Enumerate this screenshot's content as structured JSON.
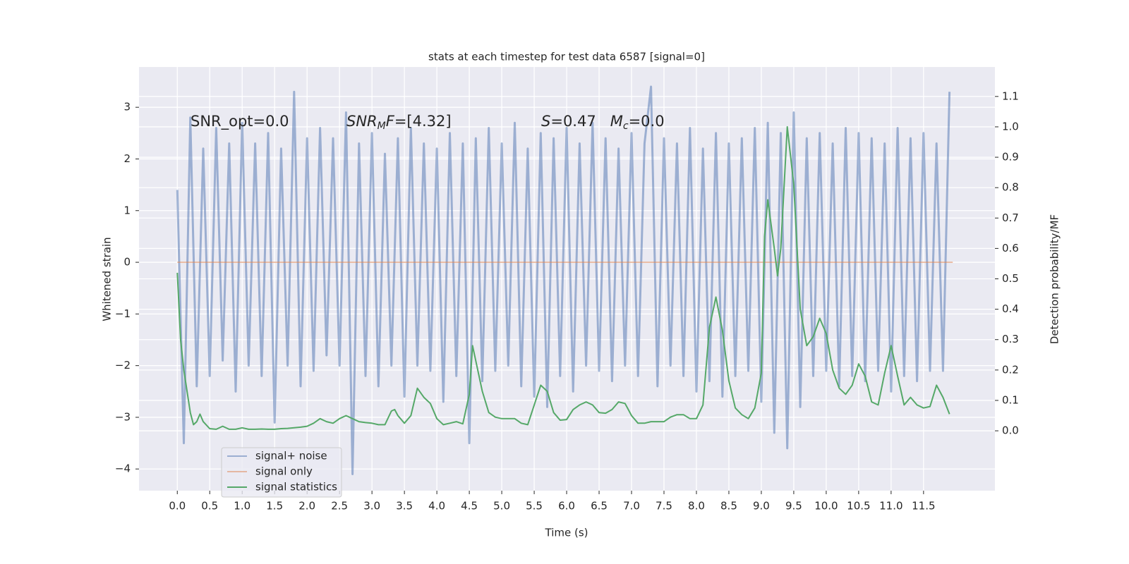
{
  "chart_data": {
    "type": "line",
    "title": "stats at each timestep for test data 6587 [signal=0]",
    "x_label": "Time (s)",
    "y_label": "Whitened strain",
    "y2_label": "Detection probability/MF",
    "xlim": [
      -0.59,
      12.6
    ],
    "ylim": [
      -4.42,
      3.78
    ],
    "y2lim": [
      -0.197,
      1.197
    ],
    "grid": true,
    "legend": "lower left",
    "xticks": [
      {
        "value": 0,
        "label": "0.0"
      },
      0.5,
      {
        "value": 1,
        "label": "1.0"
      },
      1.5,
      {
        "value": 2,
        "label": "2.0"
      },
      2.5,
      {
        "value": 3,
        "label": "3.0"
      },
      3.5,
      {
        "value": 4,
        "label": "4.0"
      },
      4.5,
      {
        "value": 5,
        "label": "5.0"
      },
      5.5,
      {
        "value": 6,
        "label": "6.0"
      },
      6.5,
      {
        "value": 7,
        "label": "7.0"
      },
      7.5,
      {
        "value": 8,
        "label": "8.0"
      },
      8.5,
      {
        "value": 9,
        "label": "9.0"
      },
      9.5,
      {
        "value": 10,
        "label": "10.0"
      },
      10.5,
      {
        "value": 11,
        "label": "11.0"
      },
      11.5
    ],
    "yticks": [
      {
        "value": -4,
        "label": "−4"
      },
      {
        "value": -3,
        "label": "−3"
      },
      {
        "value": -2,
        "label": "−2"
      },
      {
        "value": -1,
        "label": "−1"
      },
      0,
      1,
      2,
      3
    ],
    "y2ticks": [
      {
        "value": 0,
        "label": "0.0"
      },
      0.1,
      0.2,
      0.3,
      0.4,
      0.5,
      0.6,
      0.7,
      0.8,
      0.9,
      {
        "value": 1,
        "label": "1.0"
      },
      1.1
    ],
    "annotations": [
      {
        "parts": [
          {
            "text": "SNR_opt=0.0"
          }
        ]
      },
      {
        "parts": [
          {
            "text": "SNR",
            "italic": true
          },
          {
            "text": "M",
            "italic": true,
            "sub": true
          },
          {
            "text": "F",
            "italic": true
          },
          {
            "text": "=[4.32]"
          }
        ]
      },
      {
        "parts": [
          {
            "text": "S",
            "italic": true
          },
          {
            "text": "=0.47   "
          },
          {
            "text": "M",
            "italic": true
          },
          {
            "text": "c",
            "italic": true,
            "sub": true
          },
          {
            "text": "=0.0"
          }
        ]
      }
    ],
    "series": [
      {
        "name": "signal+ noise",
        "color": "#4c72b0",
        "alpha": 0.5,
        "x": [
          0.0,
          0.1,
          0.2,
          0.3,
          0.4,
          0.5,
          0.6,
          0.7,
          0.8,
          0.9,
          1.0,
          1.1,
          1.2,
          1.3,
          1.4,
          1.5,
          1.6,
          1.7,
          1.8,
          1.9,
          2.0,
          2.1,
          2.2,
          2.3,
          2.4,
          2.5,
          2.6,
          2.7,
          2.8,
          2.9,
          3.0,
          3.1,
          3.2,
          3.3,
          3.4,
          3.5,
          3.6,
          3.7,
          3.8,
          3.9,
          4.0,
          4.1,
          4.2,
          4.3,
          4.4,
          4.5,
          4.6,
          4.7,
          4.8,
          4.9,
          5.0,
          5.1,
          5.2,
          5.3,
          5.4,
          5.5,
          5.6,
          5.7,
          5.8,
          5.9,
          6.0,
          6.1,
          6.2,
          6.3,
          6.4,
          6.5,
          6.6,
          6.7,
          6.8,
          6.9,
          7.0,
          7.1,
          7.2,
          7.3,
          7.4,
          7.5,
          7.6,
          7.7,
          7.8,
          7.9,
          8.0,
          8.1,
          8.2,
          8.3,
          8.4,
          8.5,
          8.6,
          8.7,
          8.8,
          8.9,
          9.0,
          9.1,
          9.2,
          9.3,
          9.4,
          9.5,
          9.6,
          9.7,
          9.8,
          9.9,
          10.0,
          10.1,
          10.2,
          10.3,
          10.4,
          10.5,
          10.6,
          10.7,
          10.8,
          10.9,
          11.0,
          11.1,
          11.2,
          11.3,
          11.4,
          11.5,
          11.6,
          11.7,
          11.8,
          11.9
        ],
        "values": [
          1.4,
          -3.5,
          2.8,
          -2.4,
          2.2,
          -2.2,
          2.6,
          -1.9,
          2.3,
          -2.5,
          2.7,
          -2.0,
          2.3,
          -2.2,
          2.5,
          -3.1,
          2.2,
          -2.0,
          3.3,
          -2.4,
          2.4,
          -2.1,
          2.6,
          -1.8,
          2.4,
          -2.0,
          2.9,
          -4.1,
          2.3,
          -2.2,
          2.5,
          -2.4,
          2.1,
          -2.0,
          2.4,
          -2.6,
          2.6,
          -2.0,
          2.3,
          -2.1,
          2.2,
          -2.7,
          2.5,
          -2.2,
          2.3,
          -3.5,
          2.4,
          -2.3,
          2.6,
          -2.1,
          2.3,
          -2.0,
          2.7,
          -2.4,
          2.2,
          -2.6,
          2.5,
          -2.8,
          2.4,
          -2.2,
          2.6,
          -2.5,
          2.3,
          -2.0,
          2.7,
          -2.1,
          2.4,
          -2.3,
          2.2,
          -2.0,
          2.5,
          -2.2,
          2.3,
          3.4,
          -2.4,
          2.4,
          -2.0,
          2.3,
          -2.2,
          2.6,
          -2.5,
          2.2,
          -2.3,
          2.5,
          -2.6,
          2.3,
          -2.2,
          2.4,
          -2.1,
          2.6,
          -2.7,
          2.7,
          -3.3,
          2.5,
          -3.6,
          2.9,
          -2.8,
          2.4,
          -2.2,
          2.5,
          -2.1,
          2.3,
          -2.4,
          2.6,
          -2.2,
          2.5,
          -2.3,
          2.4,
          -2.1,
          2.3,
          -2.5,
          2.6,
          -2.2,
          2.4,
          -2.3,
          2.5,
          -2.1,
          2.3,
          -2.1,
          3.3
        ]
      },
      {
        "name": "signal only",
        "color": "#dd8452",
        "alpha": 0.5,
        "x": [
          0.0,
          11.95
        ],
        "values": [
          0,
          0
        ]
      },
      {
        "name": "signal statistics",
        "color": "#55a868",
        "alpha": 1,
        "axis": "y2",
        "x": [
          0.0,
          0.05,
          0.1,
          0.2,
          0.25,
          0.3,
          0.35,
          0.4,
          0.5,
          0.6,
          0.7,
          0.8,
          0.9,
          1.0,
          1.1,
          1.2,
          1.3,
          1.4,
          1.5,
          1.6,
          1.7,
          1.8,
          1.9,
          2.0,
          2.1,
          2.2,
          2.3,
          2.4,
          2.5,
          2.6,
          2.7,
          2.8,
          2.9,
          3.0,
          3.1,
          3.2,
          3.3,
          3.35,
          3.4,
          3.5,
          3.6,
          3.7,
          3.8,
          3.9,
          4.0,
          4.1,
          4.2,
          4.3,
          4.4,
          4.5,
          4.55,
          4.6,
          4.7,
          4.8,
          4.9,
          5.0,
          5.1,
          5.2,
          5.3,
          5.4,
          5.5,
          5.6,
          5.7,
          5.8,
          5.9,
          6.0,
          6.1,
          6.2,
          6.3,
          6.4,
          6.5,
          6.6,
          6.7,
          6.8,
          6.9,
          7.0,
          7.1,
          7.2,
          7.3,
          7.4,
          7.5,
          7.6,
          7.7,
          7.8,
          7.9,
          8.0,
          8.1,
          8.2,
          8.3,
          8.4,
          8.5,
          8.6,
          8.7,
          8.8,
          8.9,
          9.0,
          9.05,
          9.1,
          9.2,
          9.25,
          9.3,
          9.4,
          9.5,
          9.6,
          9.7,
          9.8,
          9.9,
          10.0,
          10.1,
          10.2,
          10.3,
          10.4,
          10.5,
          10.6,
          10.7,
          10.8,
          10.9,
          11.0,
          11.1,
          11.2,
          11.3,
          11.4,
          11.5,
          11.6,
          11.7,
          11.8,
          11.9
        ],
        "values": [
          0.52,
          0.3,
          0.2,
          0.06,
          0.02,
          0.03,
          0.055,
          0.03,
          0.007,
          0.005,
          0.015,
          0.005,
          0.005,
          0.01,
          0.005,
          0.005,
          0.006,
          0.005,
          0.005,
          0.007,
          0.008,
          0.01,
          0.012,
          0.015,
          0.025,
          0.04,
          0.03,
          0.025,
          0.04,
          0.05,
          0.04,
          0.03,
          0.027,
          0.025,
          0.02,
          0.02,
          0.065,
          0.07,
          0.05,
          0.025,
          0.05,
          0.14,
          0.11,
          0.09,
          0.04,
          0.02,
          0.025,
          0.03,
          0.023,
          0.12,
          0.28,
          0.23,
          0.13,
          0.06,
          0.045,
          0.04,
          0.04,
          0.04,
          0.025,
          0.02,
          0.085,
          0.15,
          0.13,
          0.06,
          0.035,
          0.037,
          0.07,
          0.085,
          0.095,
          0.085,
          0.06,
          0.058,
          0.07,
          0.095,
          0.09,
          0.05,
          0.025,
          0.025,
          0.03,
          0.03,
          0.03,
          0.045,
          0.053,
          0.053,
          0.04,
          0.04,
          0.085,
          0.34,
          0.44,
          0.33,
          0.165,
          0.075,
          0.053,
          0.04,
          0.075,
          0.19,
          0.64,
          0.76,
          0.6,
          0.51,
          0.6,
          1.0,
          0.81,
          0.4,
          0.28,
          0.31,
          0.37,
          0.32,
          0.2,
          0.14,
          0.12,
          0.15,
          0.22,
          0.18,
          0.095,
          0.085,
          0.19,
          0.28,
          0.18,
          0.085,
          0.11,
          0.085,
          0.075,
          0.08,
          0.15,
          0.11,
          0.055
        ]
      }
    ]
  }
}
